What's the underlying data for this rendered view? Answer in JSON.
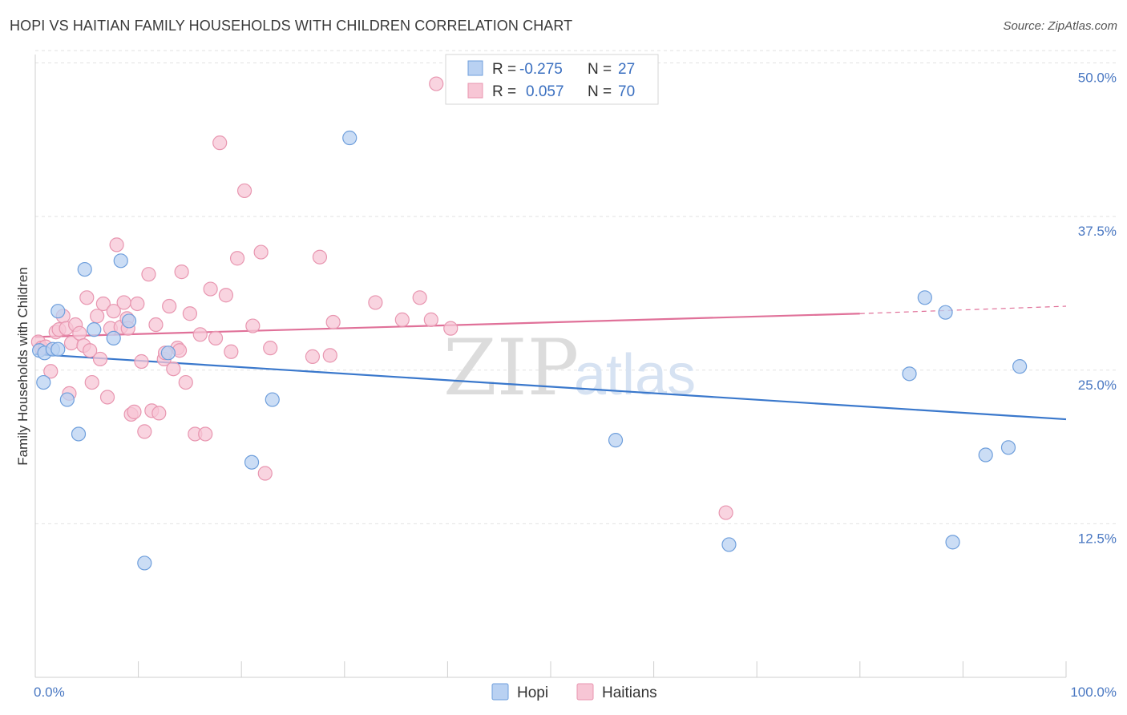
{
  "title": "HOPI VS HAITIAN FAMILY HOUSEHOLDS WITH CHILDREN CORRELATION CHART",
  "source": "Source: ZipAtlas.com",
  "watermark": {
    "zip": "ZIP",
    "atlas": "atlas"
  },
  "legend_top": {
    "hopi": {
      "r_label": "R =",
      "r_value": "-0.275",
      "n_label": "N =",
      "n_value": "27"
    },
    "haitians": {
      "r_label": "R =",
      "r_value": "0.057",
      "n_label": "N =",
      "n_value": "70"
    }
  },
  "colors": {
    "hopi_fill": "#b9d1f2",
    "hopi_stroke": "#6f9fdc",
    "hopi_line": "#3a78cc",
    "haiti_fill": "#f7c6d5",
    "haiti_stroke": "#e896b0",
    "haiti_line": "#e07199",
    "grid": "#e2e2e2",
    "axis_tick": "#4a78c2"
  },
  "chart_data": {
    "type": "scatter",
    "title": "HOPI VS HAITIAN FAMILY HOUSEHOLDS WITH CHILDREN CORRELATION CHART",
    "xlabel": "",
    "ylabel": "Family Households with Children",
    "xlim": [
      0,
      100
    ],
    "ylim": [
      0,
      52
    ],
    "x_tick_labels": [
      "0.0%",
      "100.0%"
    ],
    "y_ticks": [
      12.5,
      25.0,
      37.5,
      50.0
    ],
    "y_tick_labels": [
      "12.5%",
      "25.0%",
      "37.5%",
      "50.0%"
    ],
    "grid": true,
    "legend_position": "top-center",
    "series": [
      {
        "name": "Hopi",
        "r": -0.275,
        "n": 27,
        "trend": {
          "x": [
            0,
            100
          ],
          "y": [
            26.3,
            21.0
          ]
        },
        "points": [
          [
            0.4,
            26.6
          ],
          [
            0.9,
            26.4
          ],
          [
            1.7,
            26.7
          ],
          [
            2.2,
            26.7
          ],
          [
            0.8,
            24.0
          ],
          [
            3.1,
            22.6
          ],
          [
            2.2,
            29.8
          ],
          [
            4.8,
            33.2
          ],
          [
            5.7,
            28.3
          ],
          [
            7.6,
            27.6
          ],
          [
            8.3,
            33.9
          ],
          [
            9.1,
            29.0
          ],
          [
            10.6,
            9.3
          ],
          [
            12.9,
            26.4
          ],
          [
            21.0,
            17.5
          ],
          [
            23.0,
            22.6
          ],
          [
            30.5,
            43.9
          ],
          [
            4.2,
            19.8
          ],
          [
            56.3,
            19.3
          ],
          [
            67.3,
            10.8
          ],
          [
            84.8,
            24.7
          ],
          [
            86.3,
            30.9
          ],
          [
            88.3,
            29.7
          ],
          [
            89.0,
            11.0
          ],
          [
            92.2,
            18.1
          ],
          [
            94.4,
            18.7
          ],
          [
            95.5,
            25.3
          ]
        ]
      },
      {
        "name": "Haitians",
        "r": 0.057,
        "n": 70,
        "trend": {
          "x": [
            0,
            80
          ],
          "y": [
            27.7,
            29.6
          ]
        },
        "trend_dashed": {
          "x": [
            80,
            100
          ],
          "y": [
            29.6,
            30.2
          ]
        },
        "points": [
          [
            0.3,
            27.3
          ],
          [
            0.6,
            26.8
          ],
          [
            1.0,
            26.9
          ],
          [
            1.5,
            24.9
          ],
          [
            2.0,
            28.1
          ],
          [
            2.3,
            28.3
          ],
          [
            2.7,
            29.4
          ],
          [
            3.0,
            28.4
          ],
          [
            3.3,
            23.1
          ],
          [
            3.5,
            27.2
          ],
          [
            3.9,
            28.7
          ],
          [
            4.3,
            28.0
          ],
          [
            4.7,
            27.0
          ],
          [
            5.0,
            30.9
          ],
          [
            5.3,
            26.6
          ],
          [
            5.5,
            24.0
          ],
          [
            6.0,
            29.4
          ],
          [
            6.3,
            25.9
          ],
          [
            6.6,
            30.4
          ],
          [
            7.0,
            22.8
          ],
          [
            7.3,
            28.4
          ],
          [
            7.6,
            29.8
          ],
          [
            7.9,
            35.2
          ],
          [
            8.3,
            28.5
          ],
          [
            8.6,
            30.5
          ],
          [
            8.9,
            29.2
          ],
          [
            9.3,
            21.4
          ],
          [
            9.6,
            21.6
          ],
          [
            9.9,
            30.4
          ],
          [
            10.3,
            25.7
          ],
          [
            10.6,
            20.0
          ],
          [
            11.0,
            32.8
          ],
          [
            11.3,
            21.7
          ],
          [
            11.7,
            28.7
          ],
          [
            12.0,
            21.5
          ],
          [
            12.5,
            25.9
          ],
          [
            13.0,
            30.2
          ],
          [
            13.4,
            25.1
          ],
          [
            13.8,
            26.8
          ],
          [
            14.2,
            33.0
          ],
          [
            14.6,
            24.0
          ],
          [
            15.0,
            29.6
          ],
          [
            15.5,
            19.8
          ],
          [
            16.0,
            27.9
          ],
          [
            16.5,
            19.8
          ],
          [
            17.0,
            31.6
          ],
          [
            17.5,
            27.6
          ],
          [
            17.9,
            43.5
          ],
          [
            18.5,
            31.1
          ],
          [
            19.0,
            26.5
          ],
          [
            19.6,
            34.1
          ],
          [
            20.3,
            39.6
          ],
          [
            21.1,
            28.6
          ],
          [
            21.9,
            34.6
          ],
          [
            22.3,
            16.6
          ],
          [
            22.8,
            26.8
          ],
          [
            26.9,
            26.1
          ],
          [
            27.6,
            34.2
          ],
          [
            28.9,
            28.9
          ],
          [
            28.6,
            26.2
          ],
          [
            33.0,
            30.5
          ],
          [
            35.6,
            29.1
          ],
          [
            37.3,
            30.9
          ],
          [
            38.4,
            29.1
          ],
          [
            38.9,
            48.3
          ],
          [
            40.3,
            28.4
          ],
          [
            67.0,
            13.4
          ],
          [
            12.6,
            26.4
          ],
          [
            14.0,
            26.6
          ],
          [
            9.0,
            28.4
          ]
        ]
      }
    ],
    "bottom_legend": [
      "Hopi",
      "Haitians"
    ]
  }
}
